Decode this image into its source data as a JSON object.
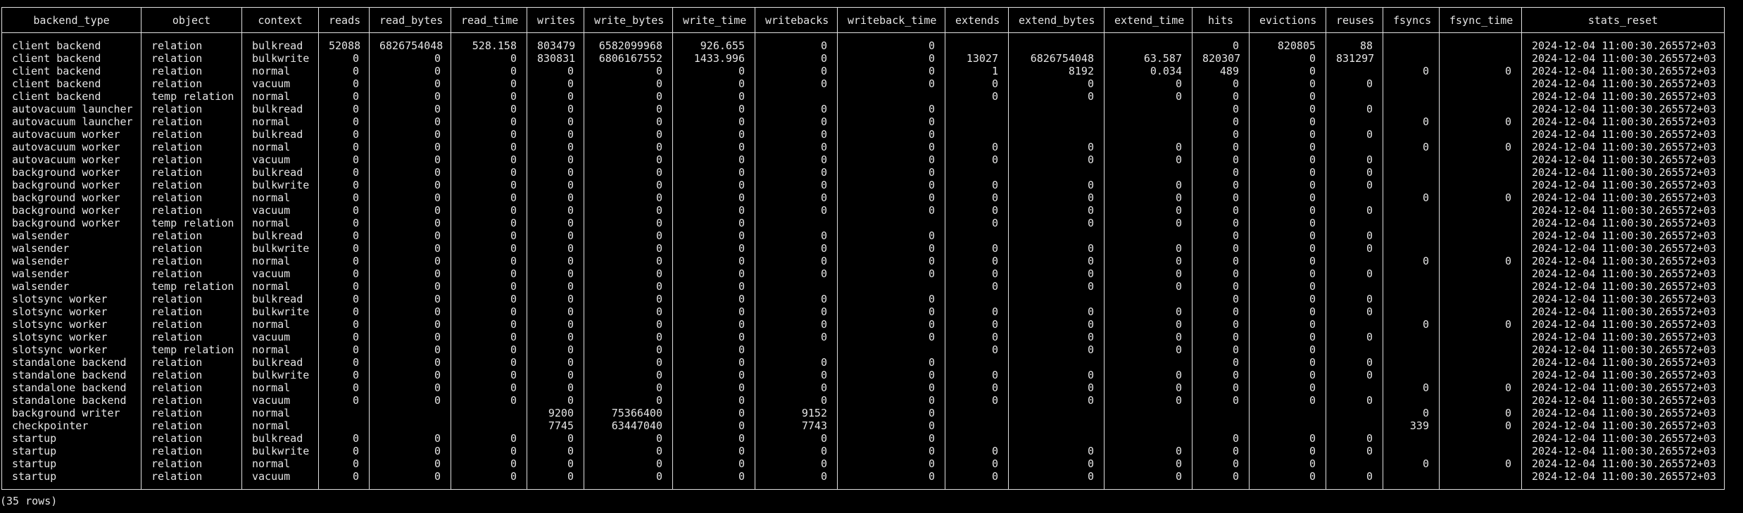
{
  "columns": [
    "backend_type",
    "object",
    "context",
    "reads",
    "read_bytes",
    "read_time",
    "writes",
    "write_bytes",
    "write_time",
    "writebacks",
    "writeback_time",
    "extends",
    "extend_bytes",
    "extend_time",
    "hits",
    "evictions",
    "reuses",
    "fsyncs",
    "fsync_time",
    "stats_reset"
  ],
  "rows": [
    [
      "client backend",
      "relation",
      "bulkread",
      "52088",
      "6826754048",
      "528.158",
      "803479",
      "6582099968",
      "926.655",
      "0",
      "0",
      null,
      null,
      null,
      "0",
      "820805",
      "88",
      null,
      null,
      "2024-12-04 11:00:30.265572+03"
    ],
    [
      "client backend",
      "relation",
      "bulkwrite",
      "0",
      "0",
      "0",
      "830831",
      "6806167552",
      "1433.996",
      "0",
      "0",
      "13027",
      "6826754048",
      "63.587",
      "820307",
      "0",
      "831297",
      null,
      null,
      "2024-12-04 11:00:30.265572+03"
    ],
    [
      "client backend",
      "relation",
      "normal",
      "0",
      "0",
      "0",
      "0",
      "0",
      "0",
      "0",
      "0",
      "1",
      "8192",
      "0.034",
      "489",
      "0",
      null,
      "0",
      "0",
      "2024-12-04 11:00:30.265572+03"
    ],
    [
      "client backend",
      "relation",
      "vacuum",
      "0",
      "0",
      "0",
      "0",
      "0",
      "0",
      "0",
      "0",
      "0",
      "0",
      "0",
      "0",
      "0",
      "0",
      null,
      null,
      "2024-12-04 11:00:30.265572+03"
    ],
    [
      "client backend",
      "temp relation",
      "normal",
      "0",
      "0",
      "0",
      "0",
      "0",
      "0",
      null,
      null,
      "0",
      "0",
      "0",
      "0",
      "0",
      null,
      null,
      null,
      "2024-12-04 11:00:30.265572+03"
    ],
    [
      "autovacuum launcher",
      "relation",
      "bulkread",
      "0",
      "0",
      "0",
      "0",
      "0",
      "0",
      "0",
      "0",
      null,
      null,
      null,
      "0",
      "0",
      "0",
      null,
      null,
      "2024-12-04 11:00:30.265572+03"
    ],
    [
      "autovacuum launcher",
      "relation",
      "normal",
      "0",
      "0",
      "0",
      "0",
      "0",
      "0",
      "0",
      "0",
      null,
      null,
      null,
      "0",
      "0",
      null,
      "0",
      "0",
      "2024-12-04 11:00:30.265572+03"
    ],
    [
      "autovacuum worker",
      "relation",
      "bulkread",
      "0",
      "0",
      "0",
      "0",
      "0",
      "0",
      "0",
      "0",
      null,
      null,
      null,
      "0",
      "0",
      "0",
      null,
      null,
      "2024-12-04 11:00:30.265572+03"
    ],
    [
      "autovacuum worker",
      "relation",
      "normal",
      "0",
      "0",
      "0",
      "0",
      "0",
      "0",
      "0",
      "0",
      "0",
      "0",
      "0",
      "0",
      "0",
      null,
      "0",
      "0",
      "2024-12-04 11:00:30.265572+03"
    ],
    [
      "autovacuum worker",
      "relation",
      "vacuum",
      "0",
      "0",
      "0",
      "0",
      "0",
      "0",
      "0",
      "0",
      "0",
      "0",
      "0",
      "0",
      "0",
      "0",
      null,
      null,
      "2024-12-04 11:00:30.265572+03"
    ],
    [
      "background worker",
      "relation",
      "bulkread",
      "0",
      "0",
      "0",
      "0",
      "0",
      "0",
      "0",
      "0",
      null,
      null,
      null,
      "0",
      "0",
      "0",
      null,
      null,
      "2024-12-04 11:00:30.265572+03"
    ],
    [
      "background worker",
      "relation",
      "bulkwrite",
      "0",
      "0",
      "0",
      "0",
      "0",
      "0",
      "0",
      "0",
      "0",
      "0",
      "0",
      "0",
      "0",
      "0",
      null,
      null,
      "2024-12-04 11:00:30.265572+03"
    ],
    [
      "background worker",
      "relation",
      "normal",
      "0",
      "0",
      "0",
      "0",
      "0",
      "0",
      "0",
      "0",
      "0",
      "0",
      "0",
      "0",
      "0",
      null,
      "0",
      "0",
      "2024-12-04 11:00:30.265572+03"
    ],
    [
      "background worker",
      "relation",
      "vacuum",
      "0",
      "0",
      "0",
      "0",
      "0",
      "0",
      "0",
      "0",
      "0",
      "0",
      "0",
      "0",
      "0",
      "0",
      null,
      null,
      "2024-12-04 11:00:30.265572+03"
    ],
    [
      "background worker",
      "temp relation",
      "normal",
      "0",
      "0",
      "0",
      "0",
      "0",
      "0",
      null,
      null,
      "0",
      "0",
      "0",
      "0",
      "0",
      null,
      null,
      null,
      "2024-12-04 11:00:30.265572+03"
    ],
    [
      "walsender",
      "relation",
      "bulkread",
      "0",
      "0",
      "0",
      "0",
      "0",
      "0",
      "0",
      "0",
      null,
      null,
      null,
      "0",
      "0",
      "0",
      null,
      null,
      "2024-12-04 11:00:30.265572+03"
    ],
    [
      "walsender",
      "relation",
      "bulkwrite",
      "0",
      "0",
      "0",
      "0",
      "0",
      "0",
      "0",
      "0",
      "0",
      "0",
      "0",
      "0",
      "0",
      "0",
      null,
      null,
      "2024-12-04 11:00:30.265572+03"
    ],
    [
      "walsender",
      "relation",
      "normal",
      "0",
      "0",
      "0",
      "0",
      "0",
      "0",
      "0",
      "0",
      "0",
      "0",
      "0",
      "0",
      "0",
      null,
      "0",
      "0",
      "2024-12-04 11:00:30.265572+03"
    ],
    [
      "walsender",
      "relation",
      "vacuum",
      "0",
      "0",
      "0",
      "0",
      "0",
      "0",
      "0",
      "0",
      "0",
      "0",
      "0",
      "0",
      "0",
      "0",
      null,
      null,
      "2024-12-04 11:00:30.265572+03"
    ],
    [
      "walsender",
      "temp relation",
      "normal",
      "0",
      "0",
      "0",
      "0",
      "0",
      "0",
      null,
      null,
      "0",
      "0",
      "0",
      "0",
      "0",
      null,
      null,
      null,
      "2024-12-04 11:00:30.265572+03"
    ],
    [
      "slotsync worker",
      "relation",
      "bulkread",
      "0",
      "0",
      "0",
      "0",
      "0",
      "0",
      "0",
      "0",
      null,
      null,
      null,
      "0",
      "0",
      "0",
      null,
      null,
      "2024-12-04 11:00:30.265572+03"
    ],
    [
      "slotsync worker",
      "relation",
      "bulkwrite",
      "0",
      "0",
      "0",
      "0",
      "0",
      "0",
      "0",
      "0",
      "0",
      "0",
      "0",
      "0",
      "0",
      "0",
      null,
      null,
      "2024-12-04 11:00:30.265572+03"
    ],
    [
      "slotsync worker",
      "relation",
      "normal",
      "0",
      "0",
      "0",
      "0",
      "0",
      "0",
      "0",
      "0",
      "0",
      "0",
      "0",
      "0",
      "0",
      null,
      "0",
      "0",
      "2024-12-04 11:00:30.265572+03"
    ],
    [
      "slotsync worker",
      "relation",
      "vacuum",
      "0",
      "0",
      "0",
      "0",
      "0",
      "0",
      "0",
      "0",
      "0",
      "0",
      "0",
      "0",
      "0",
      "0",
      null,
      null,
      "2024-12-04 11:00:30.265572+03"
    ],
    [
      "slotsync worker",
      "temp relation",
      "normal",
      "0",
      "0",
      "0",
      "0",
      "0",
      "0",
      null,
      null,
      "0",
      "0",
      "0",
      "0",
      "0",
      null,
      null,
      null,
      "2024-12-04 11:00:30.265572+03"
    ],
    [
      "standalone backend",
      "relation",
      "bulkread",
      "0",
      "0",
      "0",
      "0",
      "0",
      "0",
      "0",
      "0",
      null,
      null,
      null,
      "0",
      "0",
      "0",
      null,
      null,
      "2024-12-04 11:00:30.265572+03"
    ],
    [
      "standalone backend",
      "relation",
      "bulkwrite",
      "0",
      "0",
      "0",
      "0",
      "0",
      "0",
      "0",
      "0",
      "0",
      "0",
      "0",
      "0",
      "0",
      "0",
      null,
      null,
      "2024-12-04 11:00:30.265572+03"
    ],
    [
      "standalone backend",
      "relation",
      "normal",
      "0",
      "0",
      "0",
      "0",
      "0",
      "0",
      "0",
      "0",
      "0",
      "0",
      "0",
      "0",
      "0",
      null,
      "0",
      "0",
      "2024-12-04 11:00:30.265572+03"
    ],
    [
      "standalone backend",
      "relation",
      "vacuum",
      "0",
      "0",
      "0",
      "0",
      "0",
      "0",
      "0",
      "0",
      "0",
      "0",
      "0",
      "0",
      "0",
      "0",
      null,
      null,
      "2024-12-04 11:00:30.265572+03"
    ],
    [
      "background writer",
      "relation",
      "normal",
      null,
      null,
      null,
      "9200",
      "75366400",
      "0",
      "9152",
      "0",
      null,
      null,
      null,
      null,
      null,
      null,
      "0",
      "0",
      "2024-12-04 11:00:30.265572+03"
    ],
    [
      "checkpointer",
      "relation",
      "normal",
      null,
      null,
      null,
      "7745",
      "63447040",
      "0",
      "7743",
      "0",
      null,
      null,
      null,
      null,
      null,
      null,
      "339",
      "0",
      "2024-12-04 11:00:30.265572+03"
    ],
    [
      "startup",
      "relation",
      "bulkread",
      "0",
      "0",
      "0",
      "0",
      "0",
      "0",
      "0",
      "0",
      null,
      null,
      null,
      "0",
      "0",
      "0",
      null,
      null,
      "2024-12-04 11:00:30.265572+03"
    ],
    [
      "startup",
      "relation",
      "bulkwrite",
      "0",
      "0",
      "0",
      "0",
      "0",
      "0",
      "0",
      "0",
      "0",
      "0",
      "0",
      "0",
      "0",
      "0",
      null,
      null,
      "2024-12-04 11:00:30.265572+03"
    ],
    [
      "startup",
      "relation",
      "normal",
      "0",
      "0",
      "0",
      "0",
      "0",
      "0",
      "0",
      "0",
      "0",
      "0",
      "0",
      "0",
      "0",
      null,
      "0",
      "0",
      "2024-12-04 11:00:30.265572+03"
    ],
    [
      "startup",
      "relation",
      "vacuum",
      "0",
      "0",
      "0",
      "0",
      "0",
      "0",
      "0",
      "0",
      "0",
      "0",
      "0",
      "0",
      "0",
      "0",
      null,
      null,
      "2024-12-04 11:00:30.265572+03"
    ]
  ],
  "footer": "(35 rows)"
}
